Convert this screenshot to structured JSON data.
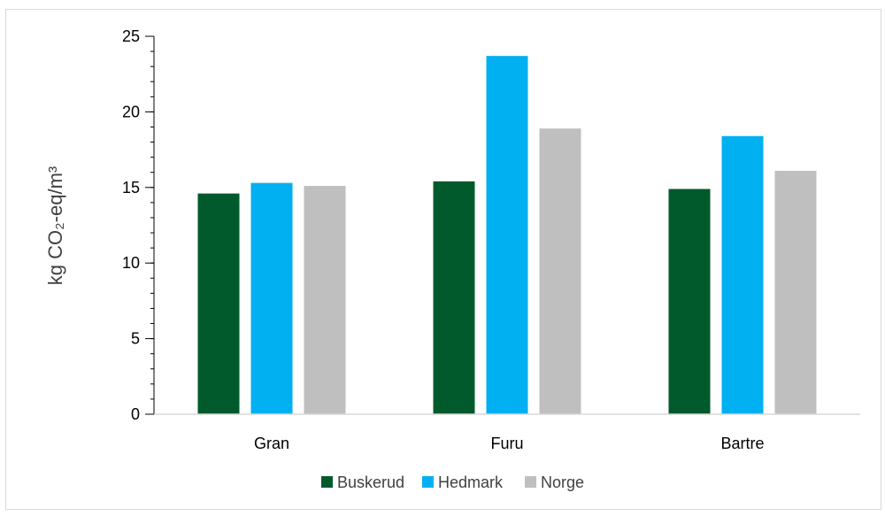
{
  "chart_data": {
    "type": "bar",
    "categories": [
      "Gran",
      "Furu",
      "Bartre"
    ],
    "series": [
      {
        "name": "Buskerud",
        "color": "#005a2b",
        "values": [
          14.6,
          15.4,
          14.9
        ]
      },
      {
        "name": "Hedmark",
        "color": "#00b0f0",
        "values": [
          15.3,
          23.7,
          18.4
        ]
      },
      {
        "name": "Norge",
        "color": "#bfbfbf",
        "values": [
          15.1,
          18.9,
          16.1
        ]
      }
    ],
    "title": "",
    "xlabel": "",
    "ylabel": "kg CO₂-eq/m³",
    "ylim": [
      0,
      25
    ],
    "yticks": [
      0,
      5,
      10,
      15,
      20,
      25
    ],
    "yminor_step": 1,
    "grid": false,
    "legend_position": "bottom"
  }
}
